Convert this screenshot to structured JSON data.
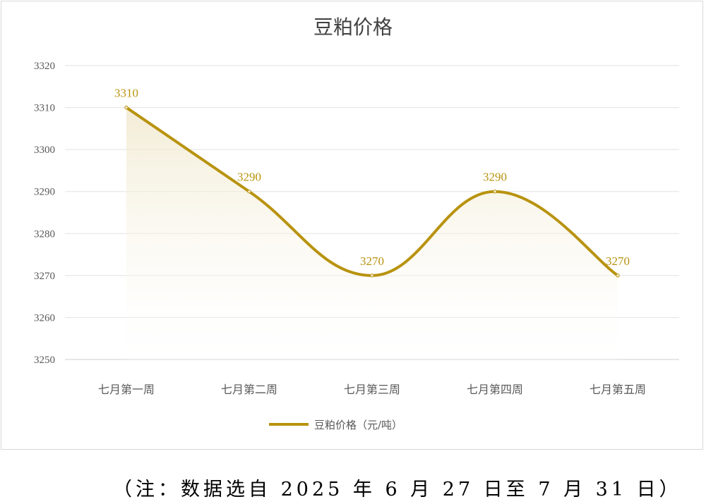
{
  "chart_data": {
    "type": "line",
    "title": "豆粕价格",
    "categories": [
      "七月第一周",
      "七月第二周",
      "七月第三周",
      "七月第四周",
      "七月第五周"
    ],
    "series": [
      {
        "name": "豆粕价格（元/吨）",
        "values": [
          3310,
          3290,
          3270,
          3290,
          3270
        ],
        "color": "#b8930f"
      }
    ],
    "ylim": [
      3250,
      3320
    ],
    "yticks": [
      3250,
      3260,
      3270,
      3280,
      3290,
      3300,
      3310,
      3320
    ],
    "smooth": true,
    "area_fill": true,
    "grid": true,
    "legend_position": "bottom",
    "data_labels": true
  },
  "footnote": "（注：数据选自 2025 年 6 月 27 日至 7 月 31 日）"
}
